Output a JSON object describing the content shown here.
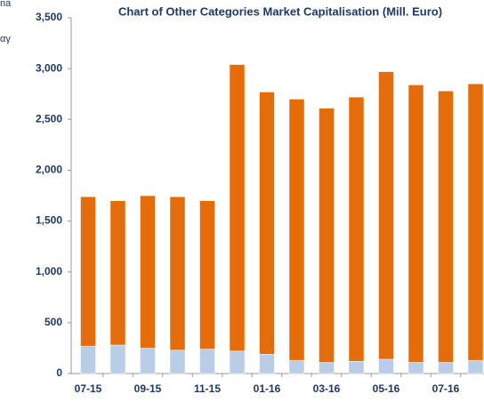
{
  "chart_data": {
    "type": "stacked_bar",
    "title": "Chart of Other Categories Market Capitalisation (Mill. Euro)",
    "annotations": [
      "na",
      "αγ"
    ],
    "categories": [
      "07-15",
      null,
      "09-15",
      null,
      "11-15",
      null,
      "01-16",
      null,
      "03-16",
      null,
      "05-16",
      null,
      "07-16",
      null
    ],
    "series": [
      {
        "color": "#b9cde6",
        "values": [
          270,
          280,
          250,
          230,
          240,
          220,
          190,
          130,
          110,
          120,
          140,
          110,
          110,
          130
        ]
      },
      {
        "color": "#e46c0a",
        "values": [
          1470,
          1420,
          1500,
          1510,
          1460,
          2820,
          2580,
          2570,
          2500,
          2600,
          2830,
          2730,
          2670,
          2720
        ]
      }
    ],
    "ylim": [
      0,
      3500
    ],
    "yticks": [
      0,
      500,
      {
        "value": 1000,
        "label": "1,000"
      },
      {
        "value": 1500,
        "label": "1,500"
      },
      {
        "value": 2000,
        "label": "2,000"
      },
      {
        "value": 2500,
        "label": "2,500"
      },
      {
        "value": 3000,
        "label": "3,000"
      },
      {
        "value": 3500,
        "label": "3,500"
      }
    ]
  }
}
